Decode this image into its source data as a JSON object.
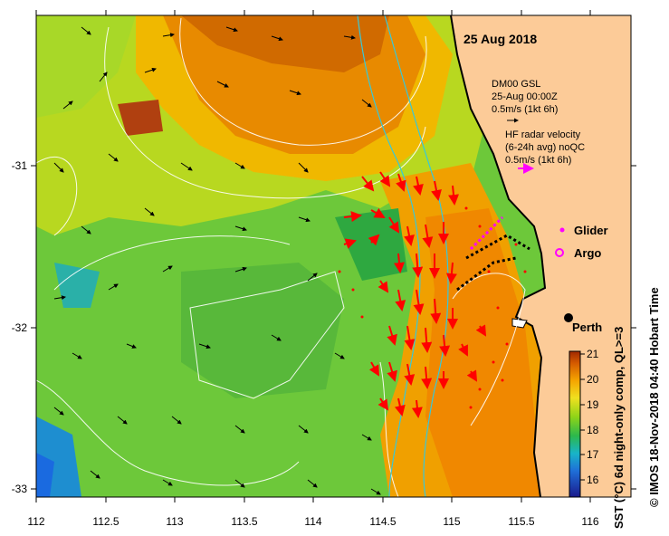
{
  "title": "25 Aug 2018",
  "model_legend": {
    "line1": "DM00 GSL",
    "line2": "25-Aug 00:00Z",
    "line3": "0.5m/s (1kt 6h)"
  },
  "radar_legend": {
    "line1": "HF radar velocity",
    "line2": "(6-24h avg) noQC",
    "line3": "0.5m/s (1kt 6h)"
  },
  "markers": {
    "glider_label": "Glider",
    "argo_label": "Argo",
    "perth_label": "Perth"
  },
  "x_ticks": [
    "112",
    "112.5",
    "113",
    "113.5",
    "114",
    "114.5",
    "115",
    "115.5",
    "116"
  ],
  "y_ticks": [
    "-31",
    "-32",
    "-33"
  ],
  "colorbar": {
    "ticks": [
      "21",
      "20",
      "19",
      "18",
      "17",
      "16"
    ],
    "label": "SST (°C) 6d night-only comp, QL>=3",
    "range": [
      15.5,
      21
    ]
  },
  "credit": "© IMOS 18-Nov-2018 04:40 Hobart Time",
  "colors": {
    "land": "#fccb98",
    "radar_arrow": "#ff0000",
    "glider": "#ff00ff",
    "model_arrow": "#000000"
  }
}
